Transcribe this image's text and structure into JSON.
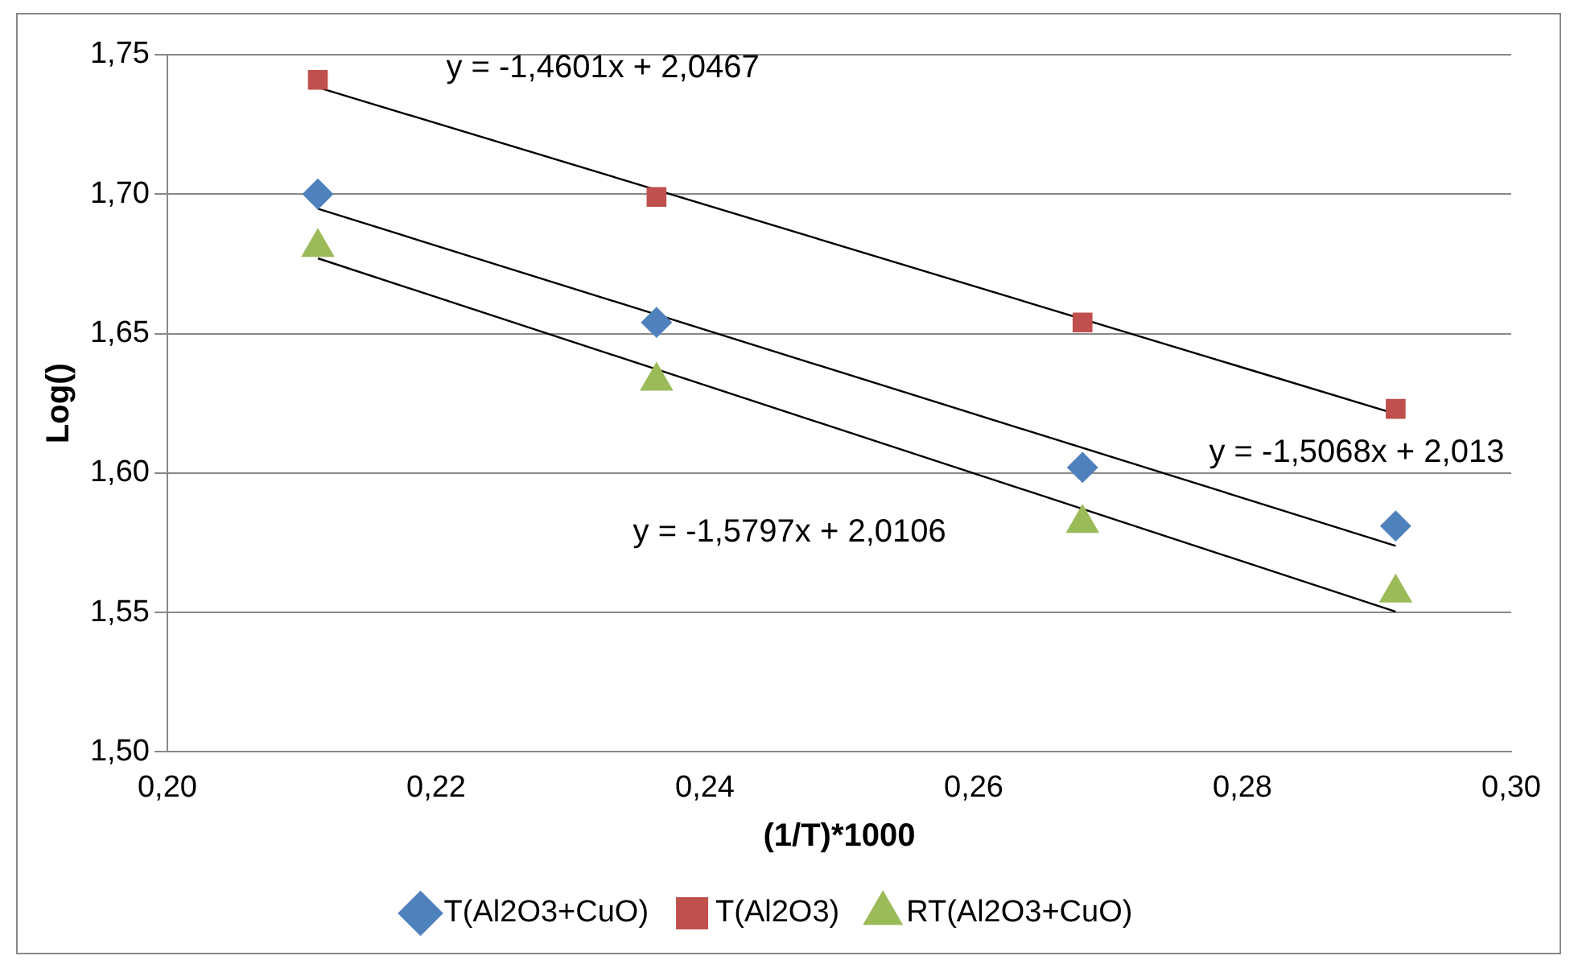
{
  "chart_data": {
    "type": "scatter",
    "xlabel": "(1/T)*1000",
    "ylabel": "Log()",
    "xlim": [
      0.2,
      0.3
    ],
    "xticks": [
      {
        "value": 0.2,
        "label": "0,20"
      },
      {
        "value": 0.22,
        "label": "0,22"
      },
      {
        "value": 0.24,
        "label": "0,24"
      },
      {
        "value": 0.26,
        "label": "0,26"
      },
      {
        "value": 0.28,
        "label": "0,28"
      },
      {
        "value": 0.3,
        "label": "0,30"
      }
    ],
    "ylim": [
      1.5,
      1.75
    ],
    "yticks": [
      {
        "value": 1.5,
        "label": "1,50"
      },
      {
        "value": 1.55,
        "label": "1,55"
      },
      {
        "value": 1.6,
        "label": "1,60"
      },
      {
        "value": 1.65,
        "label": "1,65"
      },
      {
        "value": 1.7,
        "label": "1,70"
      },
      {
        "value": 1.75,
        "label": "1,75"
      }
    ],
    "grid": "y",
    "legend": "bottom",
    "series": [
      {
        "name": "T(Al2O3+CuO)",
        "color": "#4f81bd",
        "marker": "diamond",
        "x": [
          0.2112,
          0.2364,
          0.2681,
          0.2914
        ],
        "values": [
          1.7,
          1.654,
          1.602,
          1.581
        ]
      },
      {
        "name": "T(Al2O3)",
        "color": "#c0504d",
        "marker": "square",
        "x": [
          0.2112,
          0.2364,
          0.2681,
          0.2914
        ],
        "values": [
          1.741,
          1.699,
          1.654,
          1.623
        ]
      },
      {
        "name": "RT(Al2O3+CuO)",
        "color": "#9bbb59",
        "marker": "triangle",
        "x": [
          0.2112,
          0.2364,
          0.2681,
          0.2914
        ],
        "values": [
          1.681,
          1.633,
          1.582,
          1.557
        ]
      },
      {
        "type": "line",
        "color": "#000000",
        "marker": "none",
        "x": [
          0.2112,
          0.2914
        ],
        "values": [
          1.7383,
          1.6212
        ]
      },
      {
        "type": "line",
        "color": "#000000",
        "marker": "none",
        "x": [
          0.2112,
          0.2914
        ],
        "values": [
          1.6948,
          1.5739
        ]
      },
      {
        "type": "line",
        "color": "#000000",
        "marker": "none",
        "x": [
          0.2112,
          0.2914
        ],
        "values": [
          1.677,
          1.5503
        ]
      }
    ],
    "annotations": [
      "y = -1,4601x + 2,0467",
      "y = -1,5068x + 2,013",
      "y = -1,5797x + 2,0106"
    ]
  }
}
